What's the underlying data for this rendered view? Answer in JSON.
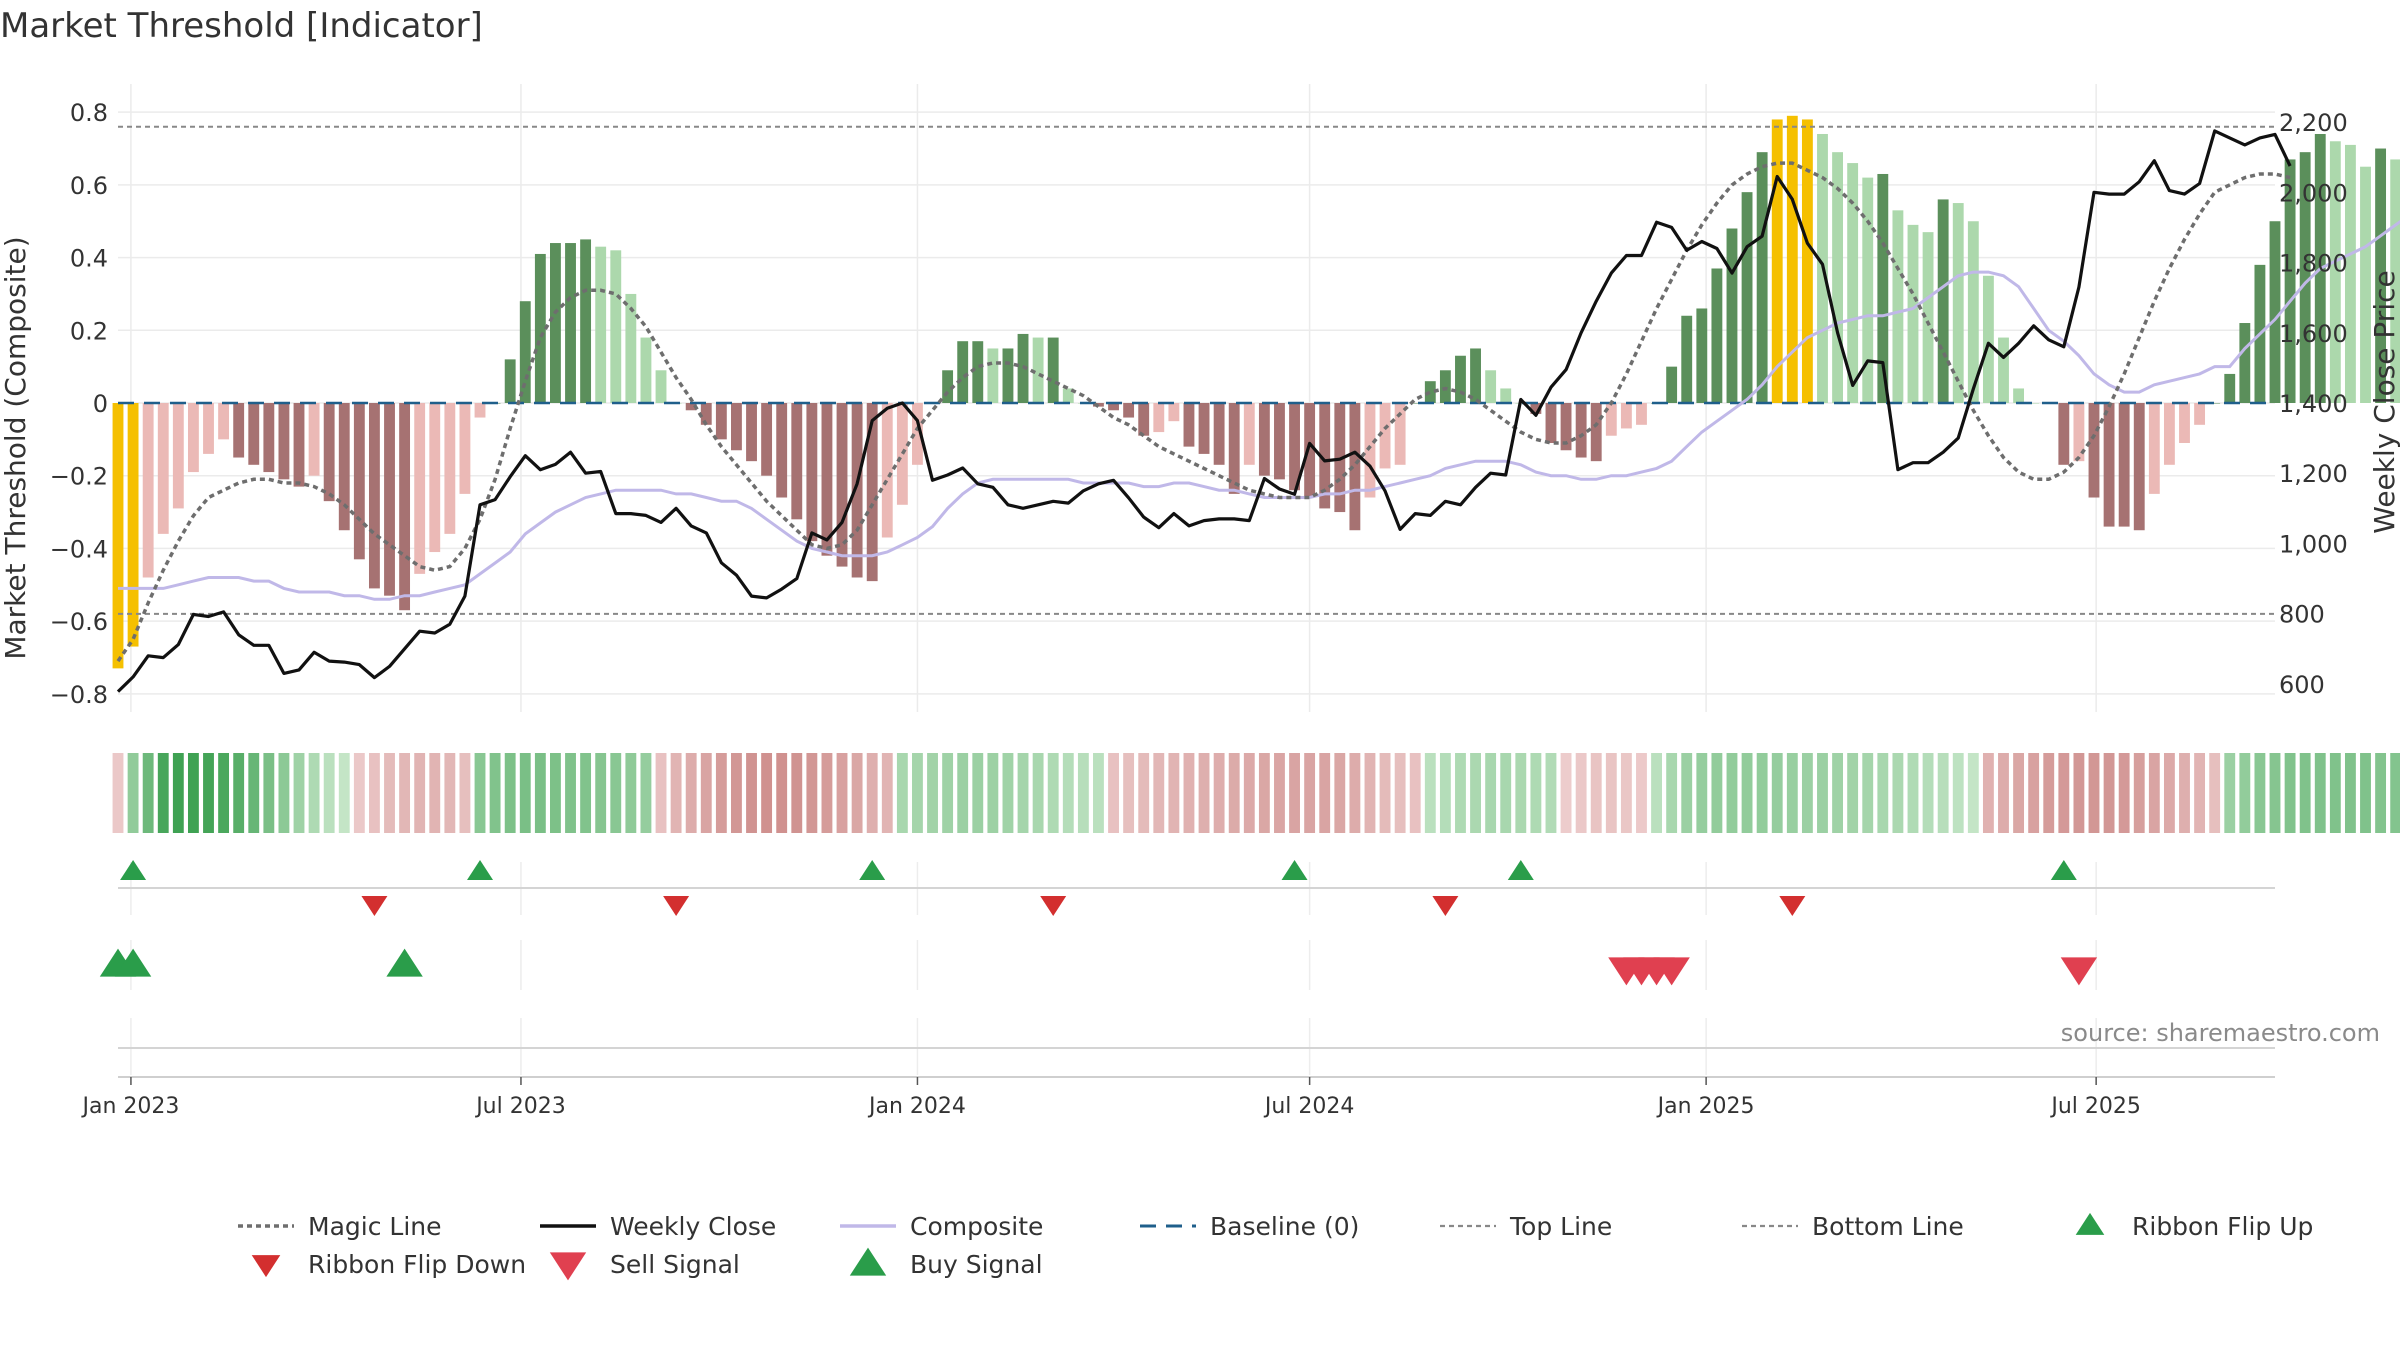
{
  "title": "Market Threshold [Indicator]",
  "source": "source: sharemaestro.com",
  "chart_data": {
    "type": "bar",
    "xlabel": "",
    "ylabel_left": "Market Threshold (Composite)",
    "ylabel_right": "Weekly Close Price",
    "x_range": [
      "2022-12-26",
      "2025-09-22"
    ],
    "x_ticks": [
      {
        "date": "2023-01-01",
        "label": "Jan 2023"
      },
      {
        "date": "2023-07-01",
        "label": "Jul 2023"
      },
      {
        "date": "2024-01-01",
        "label": "Jan 2024"
      },
      {
        "date": "2024-07-01",
        "label": "Jul 2024"
      },
      {
        "date": "2025-01-01",
        "label": "Jan 2025"
      },
      {
        "date": "2025-07-01",
        "label": "Jul 2025"
      }
    ],
    "ylim_left": [
      -0.85,
      0.85
    ],
    "y_ticks_left": [
      {
        "v": 0.8,
        "label": "0.8"
      },
      {
        "v": 0.6,
        "label": "0.6"
      },
      {
        "v": 0.4,
        "label": "0.4"
      },
      {
        "v": 0.2,
        "label": "0.2"
      },
      {
        "v": 0,
        "label": "0"
      },
      {
        "v": -0.2,
        "label": "−0.2"
      },
      {
        "v": -0.4,
        "label": "−0.4"
      },
      {
        "v": -0.6,
        "label": "−0.6"
      },
      {
        "v": -0.8,
        "label": "−0.8"
      }
    ],
    "ylim_right": [
      520,
      2280
    ],
    "y_ticks_right": [
      {
        "v": 2200,
        "label": "2,200"
      },
      {
        "v": 2000,
        "label": "2,000"
      },
      {
        "v": 1800,
        "label": "1,800"
      },
      {
        "v": 1600,
        "label": "1,600"
      },
      {
        "v": 1400,
        "label": "1,400"
      },
      {
        "v": 1200,
        "label": "1,200"
      },
      {
        "v": 1000,
        "label": "1,000"
      },
      {
        "v": 800,
        "label": "800"
      },
      {
        "v": 600,
        "label": "600"
      }
    ],
    "top_line": 0.76,
    "bottom_line": -0.58,
    "grid": true,
    "legend_position": "bottom",
    "legend": [
      {
        "key": "magic",
        "label": "Magic Line"
      },
      {
        "key": "close",
        "label": "Weekly Close"
      },
      {
        "key": "composite",
        "label": "Composite"
      },
      {
        "key": "baseline",
        "label": "Baseline (0)"
      },
      {
        "key": "top",
        "label": "Top Line"
      },
      {
        "key": "bottom",
        "label": "Bottom Line"
      },
      {
        "key": "flipup",
        "label": "Ribbon Flip Up"
      },
      {
        "key": "flipdown",
        "label": "Ribbon Flip Down"
      },
      {
        "key": "sell",
        "label": "Sell Signal"
      },
      {
        "key": "buy",
        "label": "Buy Signal"
      }
    ],
    "colors": {
      "close": "#111111",
      "magic": "#6e6e6e",
      "composite": "#c0b8e8",
      "baseline": "#1f5f8b",
      "threshold": "#888888",
      "extreme": "#f5c000",
      "pos_strong": "#5b8f5b",
      "pos_light": "#acd8ac",
      "neg_strong": "#a67272",
      "neg_light": "#ebb9b6",
      "flip_up": "#2a9d4a",
      "flip_down": "#d32f2f",
      "buy": "#2a9d4a",
      "sell": "#e04050"
    },
    "week_start": "2022-12-26",
    "series": {
      "histogram": [
        -0.73,
        -0.67,
        -0.48,
        -0.36,
        -0.29,
        -0.19,
        -0.14,
        -0.1,
        -0.15,
        -0.17,
        -0.19,
        -0.21,
        -0.23,
        -0.2,
        -0.27,
        -0.35,
        -0.43,
        -0.51,
        -0.53,
        -0.57,
        -0.47,
        -0.41,
        -0.36,
        -0.25,
        -0.04,
        0.0,
        0.12,
        0.28,
        0.41,
        0.44,
        0.44,
        0.45,
        0.43,
        0.42,
        0.3,
        0.18,
        0.09,
        0.0,
        -0.02,
        -0.06,
        -0.1,
        -0.13,
        -0.16,
        -0.2,
        -0.26,
        -0.32,
        -0.38,
        -0.42,
        -0.45,
        -0.48,
        -0.49,
        -0.37,
        -0.28,
        -0.17,
        0.0,
        0.09,
        0.17,
        0.17,
        0.15,
        0.15,
        0.19,
        0.18,
        0.18,
        0.04,
        0.0,
        -0.01,
        -0.02,
        -0.04,
        -0.09,
        -0.08,
        -0.05,
        -0.12,
        -0.14,
        -0.17,
        -0.25,
        -0.17,
        -0.2,
        -0.21,
        -0.24,
        -0.26,
        -0.29,
        -0.3,
        -0.35,
        -0.26,
        -0.18,
        -0.17,
        0.0,
        0.06,
        0.09,
        0.13,
        0.15,
        0.09,
        0.04,
        0.0,
        -0.03,
        -0.11,
        -0.13,
        -0.15,
        -0.16,
        -0.09,
        -0.07,
        -0.06,
        0.0,
        0.1,
        0.24,
        0.26,
        0.37,
        0.48,
        0.58,
        0.69,
        0.78,
        0.79,
        0.78,
        0.74,
        0.69,
        0.66,
        0.62,
        0.63,
        0.53,
        0.49,
        0.47,
        0.56,
        0.55,
        0.5,
        0.35,
        0.18,
        0.04,
        0.0,
        0.0,
        -0.17,
        -0.16,
        -0.26,
        -0.34,
        -0.34,
        -0.35,
        -0.25,
        -0.17,
        -0.11,
        -0.06,
        0.0,
        0.08,
        0.22,
        0.38,
        0.5,
        0.67,
        0.69,
        0.74,
        0.72,
        0.71,
        0.65,
        0.7,
        0.67,
        0.64,
        0.63,
        0.59
      ],
      "weekly_close": [
        578,
        620,
        680,
        675,
        712,
        798,
        792,
        805,
        740,
        710,
        710,
        630,
        640,
        690,
        665,
        662,
        655,
        618,
        650,
        700,
        750,
        745,
        770,
        850,
        1110,
        1125,
        1190,
        1250,
        1210,
        1225,
        1260,
        1200,
        1205,
        1085,
        1085,
        1080,
        1060,
        1100,
        1050,
        1030,
        945,
        910,
        850,
        845,
        870,
        900,
        1030,
        1010,
        1060,
        1170,
        1350,
        1385,
        1400,
        1350,
        1180,
        1195,
        1215,
        1170,
        1160,
        1110,
        1100,
        1110,
        1120,
        1115,
        1150,
        1170,
        1180,
        1130,
        1075,
        1045,
        1085,
        1050,
        1065,
        1070,
        1070,
        1065,
        1185,
        1155,
        1140,
        1285,
        1235,
        1240,
        1260,
        1220,
        1150,
        1040,
        1085,
        1080,
        1120,
        1110,
        1160,
        1200,
        1195,
        1410,
        1365,
        1445,
        1495,
        1600,
        1690,
        1770,
        1820,
        1820,
        1915,
        1900,
        1835,
        1860,
        1840,
        1770,
        1845,
        1875,
        2045,
        1980,
        1855,
        1795,
        1600,
        1450,
        1520,
        1515,
        1210,
        1230,
        1230,
        1260,
        1300,
        1440,
        1570,
        1530,
        1570,
        1620,
        1580,
        1560,
        1730,
        2000,
        1995,
        1995,
        2030,
        2090,
        2005,
        1995,
        2025,
        2175,
        2155,
        2135,
        2155,
        2165,
        2075
      ],
      "composite": [
        -0.51,
        -0.51,
        -0.51,
        -0.51,
        -0.5,
        -0.49,
        -0.48,
        -0.48,
        -0.48,
        -0.49,
        -0.49,
        -0.51,
        -0.52,
        -0.52,
        -0.52,
        -0.53,
        -0.53,
        -0.54,
        -0.54,
        -0.53,
        -0.53,
        -0.52,
        -0.51,
        -0.5,
        -0.47,
        -0.44,
        -0.41,
        -0.36,
        -0.33,
        -0.3,
        -0.28,
        -0.26,
        -0.25,
        -0.24,
        -0.24,
        -0.24,
        -0.24,
        -0.25,
        -0.25,
        -0.26,
        -0.27,
        -0.27,
        -0.29,
        -0.32,
        -0.35,
        -0.38,
        -0.4,
        -0.41,
        -0.42,
        -0.42,
        -0.42,
        -0.41,
        -0.39,
        -0.37,
        -0.34,
        -0.29,
        -0.25,
        -0.22,
        -0.21,
        -0.21,
        -0.21,
        -0.21,
        -0.21,
        -0.21,
        -0.22,
        -0.22,
        -0.22,
        -0.22,
        -0.23,
        -0.23,
        -0.22,
        -0.22,
        -0.23,
        -0.24,
        -0.24,
        -0.25,
        -0.26,
        -0.26,
        -0.26,
        -0.26,
        -0.25,
        -0.25,
        -0.24,
        -0.24,
        -0.23,
        -0.22,
        -0.21,
        -0.2,
        -0.18,
        -0.17,
        -0.16,
        -0.16,
        -0.16,
        -0.17,
        -0.19,
        -0.2,
        -0.2,
        -0.21,
        -0.21,
        -0.2,
        -0.2,
        -0.19,
        -0.18,
        -0.16,
        -0.12,
        -0.08,
        -0.05,
        -0.02,
        0.01,
        0.05,
        0.1,
        0.14,
        0.18,
        0.2,
        0.22,
        0.23,
        0.24,
        0.24,
        0.25,
        0.26,
        0.29,
        0.32,
        0.35,
        0.36,
        0.36,
        0.35,
        0.32,
        0.26,
        0.2,
        0.17,
        0.13,
        0.08,
        0.05,
        0.03,
        0.03,
        0.05,
        0.06,
        0.07,
        0.08,
        0.1,
        0.1,
        0.15,
        0.19,
        0.23,
        0.28,
        0.33,
        0.37,
        0.39,
        0.41,
        0.43,
        0.46,
        0.49,
        0.52,
        0.54,
        0.55
      ],
      "magic": [
        -0.71,
        -0.65,
        -0.55,
        -0.46,
        -0.38,
        -0.31,
        -0.26,
        -0.24,
        -0.22,
        -0.21,
        -0.21,
        -0.22,
        -0.22,
        -0.23,
        -0.25,
        -0.28,
        -0.32,
        -0.36,
        -0.39,
        -0.42,
        -0.45,
        -0.46,
        -0.45,
        -0.4,
        -0.32,
        -0.21,
        -0.07,
        0.06,
        0.18,
        0.25,
        0.29,
        0.31,
        0.31,
        0.3,
        0.26,
        0.21,
        0.14,
        0.07,
        0.01,
        -0.06,
        -0.12,
        -0.17,
        -0.22,
        -0.27,
        -0.31,
        -0.35,
        -0.39,
        -0.4,
        -0.39,
        -0.35,
        -0.28,
        -0.21,
        -0.14,
        -0.07,
        -0.02,
        0.03,
        0.07,
        0.1,
        0.11,
        0.11,
        0.1,
        0.08,
        0.06,
        0.04,
        0.02,
        -0.01,
        -0.04,
        -0.06,
        -0.09,
        -0.12,
        -0.14,
        -0.16,
        -0.18,
        -0.2,
        -0.22,
        -0.24,
        -0.25,
        -0.26,
        -0.26,
        -0.26,
        -0.24,
        -0.21,
        -0.17,
        -0.12,
        -0.07,
        -0.03,
        0.01,
        0.03,
        0.04,
        0.03,
        0.01,
        -0.02,
        -0.05,
        -0.08,
        -0.1,
        -0.11,
        -0.11,
        -0.09,
        -0.06,
        0.0,
        0.08,
        0.17,
        0.26,
        0.34,
        0.42,
        0.49,
        0.55,
        0.6,
        0.63,
        0.65,
        0.66,
        0.66,
        0.64,
        0.62,
        0.59,
        0.55,
        0.5,
        0.44,
        0.37,
        0.3,
        0.22,
        0.14,
        0.06,
        -0.02,
        -0.09,
        -0.15,
        -0.19,
        -0.21,
        -0.21,
        -0.19,
        -0.15,
        -0.09,
        -0.01,
        0.08,
        0.18,
        0.28,
        0.37,
        0.45,
        0.52,
        0.58,
        0.6,
        0.62,
        0.63,
        0.63,
        0.62
      ]
    },
    "ribbon": [
      -0.15,
      0.45,
      0.68,
      0.92,
      0.98,
      0.98,
      0.95,
      0.9,
      0.82,
      0.72,
      0.6,
      0.48,
      0.36,
      0.26,
      0.18,
      0.12,
      -0.15,
      -0.2,
      -0.25,
      -0.28,
      -0.3,
      -0.3,
      -0.28,
      -0.22,
      0.5,
      0.55,
      0.58,
      0.6,
      0.6,
      0.58,
      0.56,
      0.55,
      0.52,
      0.5,
      0.46,
      0.42,
      -0.2,
      -0.3,
      -0.36,
      -0.42,
      -0.48,
      -0.52,
      -0.55,
      -0.56,
      -0.56,
      -0.55,
      -0.52,
      -0.48,
      -0.44,
      -0.4,
      -0.34,
      -0.3,
      0.3,
      0.32,
      0.34,
      0.36,
      0.38,
      0.38,
      0.37,
      0.35,
      0.32,
      0.3,
      0.26,
      0.22,
      0.2,
      0.18,
      -0.2,
      -0.22,
      -0.25,
      -0.28,
      -0.3,
      -0.32,
      -0.34,
      -0.35,
      -0.37,
      -0.38,
      -0.4,
      -0.41,
      -0.42,
      -0.42,
      -0.42,
      -0.4,
      -0.36,
      -0.3,
      -0.25,
      -0.22,
      -0.2,
      0.18,
      0.22,
      0.26,
      0.28,
      0.3,
      0.3,
      0.28,
      0.26,
      0.24,
      -0.12,
      -0.15,
      -0.18,
      -0.18,
      -0.16,
      -0.14,
      0.18,
      0.3,
      0.38,
      0.42,
      0.44,
      0.44,
      0.44,
      0.44,
      0.42,
      0.4,
      0.38,
      0.38,
      0.36,
      0.34,
      0.32,
      0.3,
      0.28,
      0.25,
      0.22,
      0.2,
      0.16,
      0.12,
      -0.32,
      -0.36,
      -0.4,
      -0.44,
      -0.48,
      -0.5,
      -0.52,
      -0.52,
      -0.52,
      -0.5,
      -0.46,
      -0.42,
      -0.38,
      -0.34,
      -0.3,
      -0.22,
      0.38,
      0.44,
      0.5,
      0.52,
      0.55,
      0.56,
      0.56,
      0.56,
      0.56,
      0.56,
      0.54,
      0.54,
      0.54,
      0.54,
      0.54
    ],
    "flip_up_weeks": [
      1,
      24,
      50,
      78,
      93,
      129
    ],
    "flip_down_weeks": [
      17,
      37,
      62,
      88,
      111
    ],
    "buy_signal_weeks": [
      0,
      1,
      19
    ],
    "sell_signal_weeks": [
      100,
      101,
      102,
      103,
      130
    ]
  }
}
